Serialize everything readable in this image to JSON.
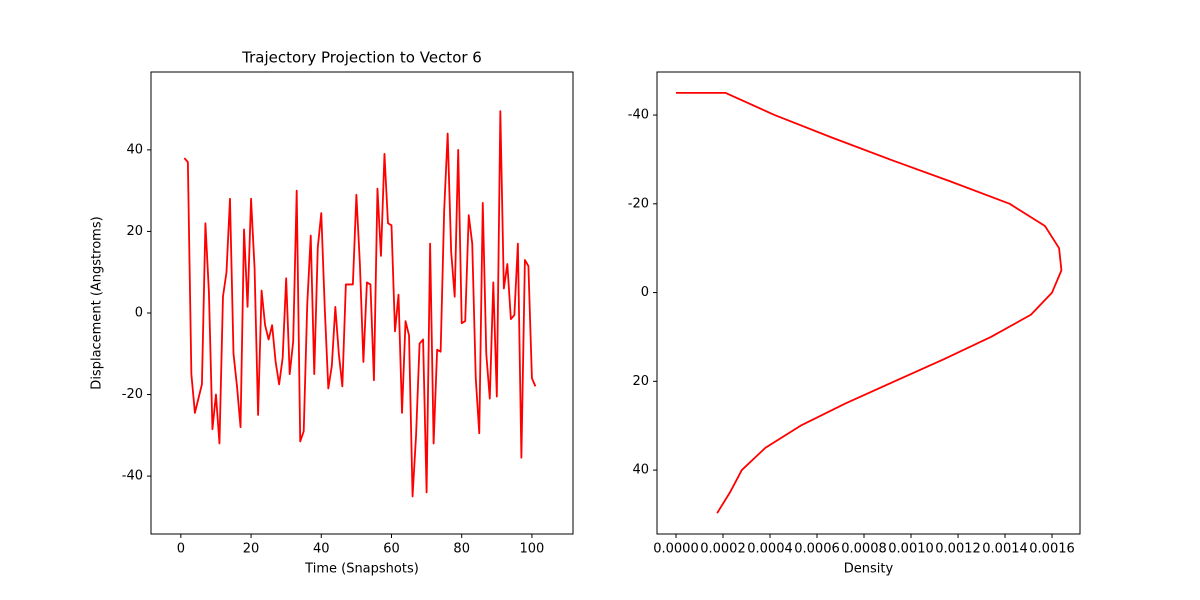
{
  "chart_data": [
    {
      "type": "line",
      "title": "Trajectory Projection to Vector 6",
      "xlabel": "Time (Snapshots)",
      "ylabel": "Displacement (Angstroms)",
      "x": [
        1,
        2,
        3,
        4,
        5,
        6,
        7,
        8,
        9,
        10,
        11,
        12,
        13,
        14,
        15,
        16,
        17,
        18,
        19,
        20,
        21,
        22,
        23,
        24,
        25,
        26,
        27,
        28,
        29,
        30,
        31,
        32,
        33,
        34,
        35,
        36,
        37,
        38,
        39,
        40,
        41,
        42,
        43,
        44,
        45,
        46,
        47,
        48,
        49,
        50,
        51,
        52,
        53,
        54,
        55,
        56,
        57,
        58,
        59,
        60,
        61,
        62,
        63,
        64,
        65,
        66,
        67,
        68,
        69,
        70,
        71,
        72,
        73,
        74,
        75,
        76,
        77,
        78,
        79,
        80,
        81,
        82,
        83,
        84,
        85,
        86,
        87,
        88,
        89,
        90,
        91,
        92,
        93,
        94,
        95,
        96,
        97,
        98,
        99,
        100,
        101
      ],
      "values": [
        38,
        37,
        -15,
        -24.5,
        -21,
        -17.5,
        22,
        5,
        -28.5,
        -20,
        -32,
        4,
        10,
        28,
        -10,
        -18,
        -28,
        20.5,
        1.5,
        28,
        11,
        -25,
        5.5,
        -3,
        -6.5,
        -3,
        -12,
        -17.5,
        -11,
        8.5,
        -15,
        -7,
        30,
        -31.5,
        -29,
        2,
        19,
        -15,
        16,
        24.5,
        1,
        -18.5,
        -13,
        1.5,
        -10,
        -18,
        7,
        7,
        7,
        29,
        12,
        -12,
        7.5,
        7,
        -16.5,
        30.5,
        14,
        39,
        22,
        21.5,
        -4.5,
        4.5,
        -24.5,
        -2,
        -5.5,
        -45,
        -30,
        -7.5,
        -6.5,
        -44,
        17,
        -32,
        -9,
        -9.5,
        25,
        44,
        15,
        4,
        40,
        -2.5,
        -2,
        24,
        17,
        -16,
        -29.5,
        27,
        -10,
        -21,
        7.5,
        -20.5,
        49.5,
        6,
        12,
        -1.5,
        -0.5,
        17,
        -35.5,
        13,
        11.5,
        -16,
        -18
      ],
      "color": "#ff0000",
      "xlim": [
        -8.5,
        111.7
      ],
      "ylim": [
        -54.2,
        59.1
      ],
      "xticks": [
        0,
        20,
        40,
        60,
        80,
        100
      ],
      "yticks": [
        -40,
        -20,
        0,
        20,
        40
      ],
      "y_inverted": false
    },
    {
      "type": "line",
      "xlabel": "Density",
      "x": [
        0,
        0.00021,
        0.00042,
        0.00066,
        0.00091,
        0.00117,
        0.00142,
        0.00157,
        0.00163,
        0.00164,
        0.0016,
        0.00151,
        0.00134,
        0.00114,
        0.00093,
        0.00072,
        0.00053,
        0.00038,
        0.00028,
        0.00023,
        0.000175
      ],
      "values": [
        -45,
        -45,
        -40,
        -35,
        -30,
        -25,
        -20,
        -15,
        -10,
        -5,
        0,
        5,
        10,
        15,
        20,
        25,
        30,
        35,
        40,
        45,
        49.7
      ],
      "color": "#ff0000",
      "xlim": [
        -8.08e-05,
        0.001719
      ],
      "ylim": [
        -49.7,
        54.4
      ],
      "xticks": [
        {
          "value": 0,
          "label": "0.0000"
        },
        {
          "value": 0.0002,
          "label": "0.0002"
        },
        {
          "value": 0.0004,
          "label": "0.0004"
        },
        {
          "value": 0.0006,
          "label": "0.0006"
        },
        {
          "value": 0.0008,
          "label": "0.0008"
        },
        {
          "value": 0.001,
          "label": "0.0010"
        },
        {
          "value": 0.0012,
          "label": "0.0012"
        },
        {
          "value": 0.0014,
          "label": "0.0014"
        },
        {
          "value": 0.0016,
          "label": "0.0016"
        }
      ],
      "yticks": [
        -40,
        -20,
        0,
        20,
        40
      ],
      "y_inverted": true
    }
  ]
}
